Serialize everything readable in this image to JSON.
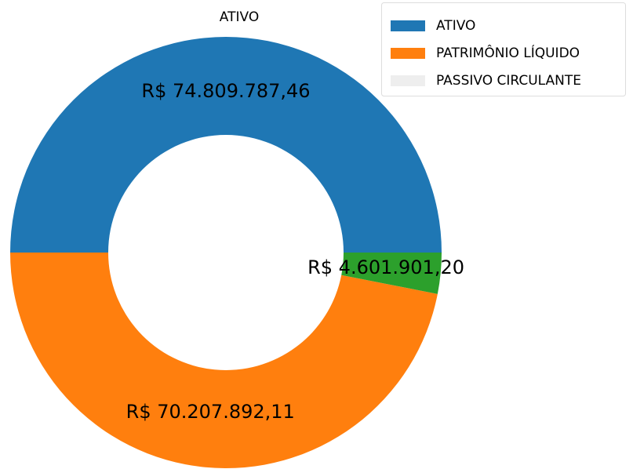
{
  "chart_data": {
    "type": "donut",
    "title": "ATIVO",
    "labels": [
      "ATIVO",
      "PATRIMÔNIO LÍQUIDO",
      "PASSIVO CIRCULANTE"
    ],
    "values": [
      74809787.46,
      70207892.11,
      4601901.2
    ],
    "value_labels": [
      "R$ 74.809.787,46",
      "R$ 70.207.892,11",
      "R$ 4.601.901,20"
    ],
    "colors": [
      "#1f77b4",
      "#ff7f0e",
      "#2ca02c"
    ],
    "legend": {
      "position": "upper right",
      "colors": [
        "#1f77b4",
        "#ff7f0e",
        "#eeeeee"
      ]
    }
  }
}
